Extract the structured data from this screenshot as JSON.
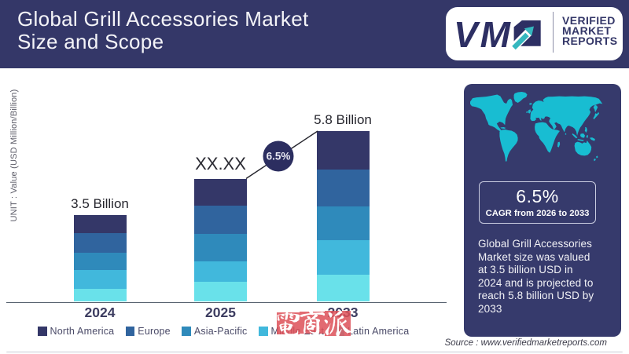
{
  "header": {
    "title_line1": "Global Grill Accessories Market",
    "title_line2": "Size and Scope",
    "logo": {
      "mark": "VM",
      "arrow_icon": "up-right-arrow",
      "name_line1": "VERIFIED",
      "name_line2": "MARKET",
      "name_line3": "REPORTS"
    }
  },
  "chart_data": {
    "type": "bar",
    "stacked": true,
    "title": "Global Grill Accessories Market Size and Scope",
    "ylabel": "UNIT : Value (USD Million/Billion)",
    "xlabel": "",
    "categories": [
      "2024",
      "2025",
      "2033"
    ],
    "value_labels": [
      "3.5 Billion",
      "XX.XX",
      "5.8 Billion"
    ],
    "values": [
      3.5,
      null,
      5.8
    ],
    "unit": "USD Billion",
    "grid": false,
    "legend_position": "bottom",
    "cagr_label": "6.5%",
    "series": [
      {
        "name": "North America",
        "color": "#343768",
        "share_pct": [
          20.5,
          21.8,
          22.3
        ]
      },
      {
        "name": "Europe",
        "color": "#30649e",
        "share_pct": [
          22.5,
          22.8,
          21.7
        ]
      },
      {
        "name": "Asia-Pacific",
        "color": "#2f8abb",
        "share_pct": [
          20.8,
          22.7,
          20.0
        ]
      },
      {
        "name": "Middle East",
        "color": "#41b8dc",
        "share_pct": [
          20.9,
          16.2,
          20.0
        ]
      },
      {
        "name": "Latin America",
        "color": "#69e1ea",
        "share_pct": [
          15.3,
          16.5,
          16.0
        ]
      }
    ]
  },
  "watermark": {
    "text": "電商派",
    "background_color": "#e05560",
    "text_color": "#ffffff"
  },
  "panel": {
    "map_icon": "world-map",
    "cagr_value": "6.5%",
    "cagr_caption": "CAGR from 2026 to 2033",
    "description": "Global Grill Accessories Market size was valued at 3.5 billion USD in 2024 and is projected to reach 5.8 billion USD by 2033"
  },
  "source": "Source : www.verifiedmarketreports.com",
  "colors": {
    "header_navy": "#343768",
    "panel_navy": "#363a6c",
    "map_teal": "#18bdd2",
    "accent_circle": "#2c2e60"
  }
}
